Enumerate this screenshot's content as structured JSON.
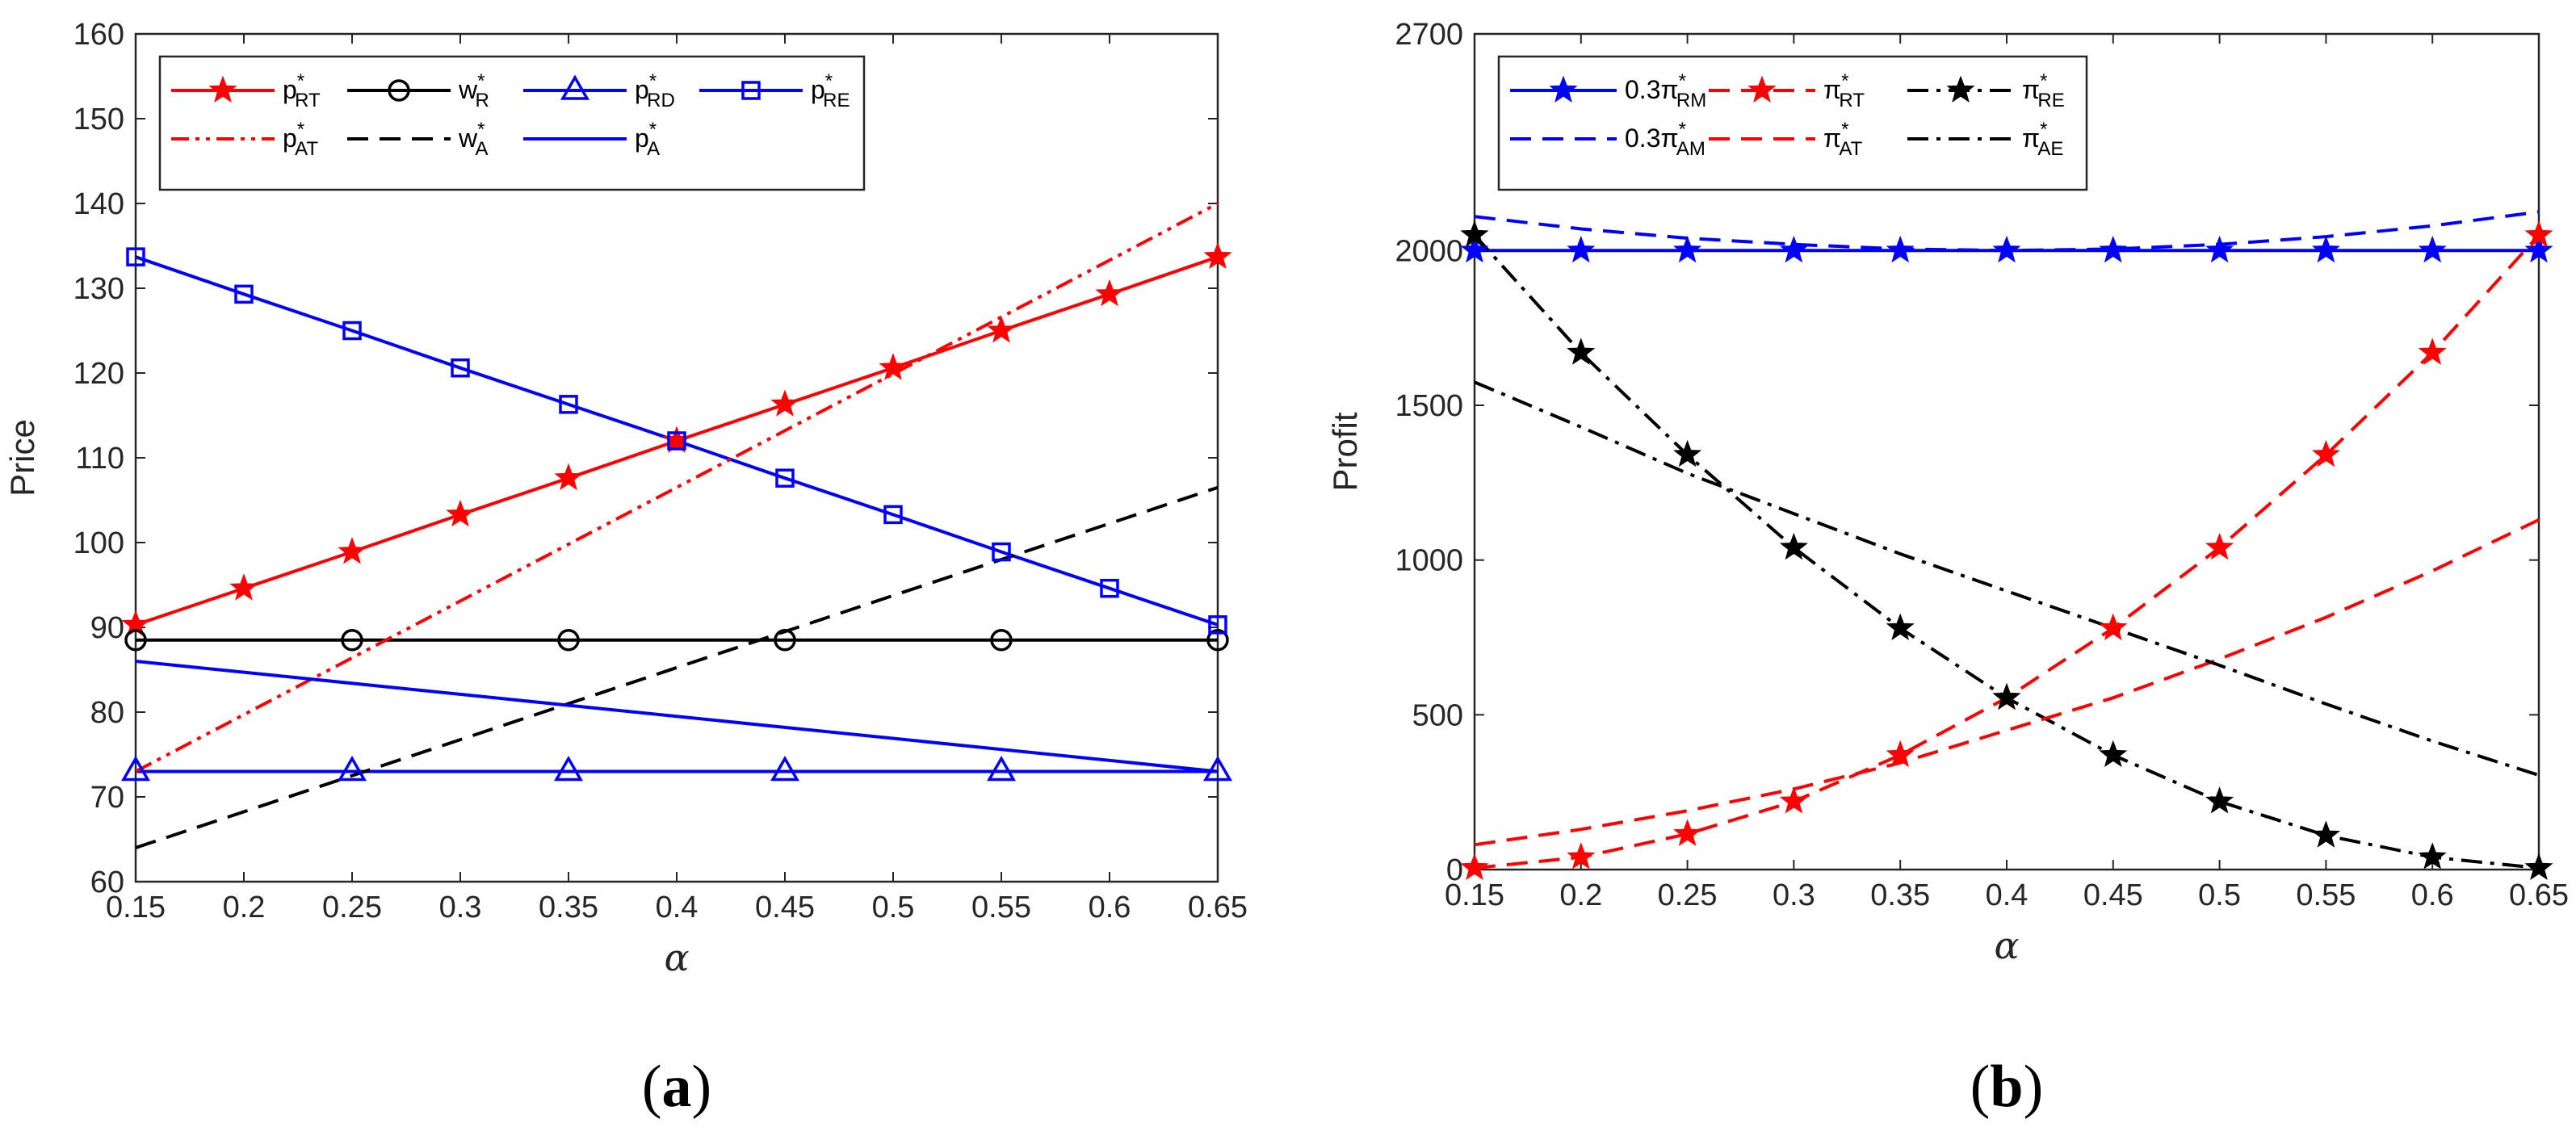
{
  "colors": {
    "red": "#ff0000",
    "blue": "#0000ff",
    "black": "#000000"
  },
  "chart_data": [
    {
      "type": "line",
      "panel_label_text": "(a)",
      "panel_letter": "a",
      "ylabel": "Price",
      "xlabel": "α",
      "xlim": [
        0.15,
        0.65
      ],
      "ylim": [
        60,
        160
      ],
      "xticks": [
        "0.15",
        "0.2",
        "0.25",
        "0.3",
        "0.35",
        "0.4",
        "0.45",
        "0.5",
        "0.55",
        "0.6",
        "0.65"
      ],
      "yticks": [
        "60",
        "70",
        "80",
        "90",
        "100",
        "110",
        "120",
        "130",
        "140",
        "150",
        "160"
      ],
      "legend_position": "top-left",
      "series": [
        {
          "key": "pRT",
          "base": "p",
          "sup": "*",
          "sub": "RT",
          "color": "#ff0000",
          "dash": "solid",
          "marker": "star",
          "x": [
            0.15,
            0.2,
            0.25,
            0.3,
            0.35,
            0.4,
            0.45,
            0.5,
            0.55,
            0.6,
            0.65
          ],
          "values": [
            90.3,
            94.6,
            98.9,
            103.3,
            107.6,
            112.0,
            116.3,
            120.6,
            125.0,
            129.3,
            133.7
          ]
        },
        {
          "key": "wR",
          "base": "w",
          "sup": "*",
          "sub": "R",
          "color": "#000000",
          "dash": "solid",
          "marker": "circle",
          "marker_x": [
            0.15,
            0.25,
            0.35,
            0.45,
            0.55,
            0.65
          ],
          "x": [
            0.15,
            0.65
          ],
          "values": [
            88.5,
            88.5
          ]
        },
        {
          "key": "pRD",
          "base": "p",
          "sup": "*",
          "sub": "RD",
          "color": "#0000ff",
          "dash": "solid",
          "marker": "triangle",
          "marker_x": [
            0.15,
            0.25,
            0.35,
            0.45,
            0.55,
            0.65
          ],
          "x": [
            0.15,
            0.65
          ],
          "values": [
            73.0,
            73.0
          ]
        },
        {
          "key": "pRE",
          "base": "p",
          "sup": "*",
          "sub": "RE",
          "color": "#0000ff",
          "dash": "solid",
          "marker": "square",
          "x": [
            0.15,
            0.2,
            0.25,
            0.3,
            0.35,
            0.4,
            0.45,
            0.5,
            0.55,
            0.6,
            0.65
          ],
          "values": [
            133.7,
            129.3,
            125.0,
            120.6,
            116.3,
            112.0,
            107.6,
            103.3,
            98.9,
            94.6,
            90.3
          ]
        },
        {
          "key": "pAT",
          "base": "p",
          "sup": "*",
          "sub": "AT",
          "color": "#ff0000",
          "dash": "dashdotdot",
          "marker": "none",
          "x": [
            0.15,
            0.65
          ],
          "values": [
            73.0,
            140.0
          ]
        },
        {
          "key": "wA",
          "base": "w",
          "sup": "*",
          "sub": "A",
          "color": "#000000",
          "dash": "dashed",
          "marker": "none",
          "x": [
            0.15,
            0.65
          ],
          "values": [
            64.0,
            106.5
          ]
        },
        {
          "key": "pA",
          "base": "p",
          "sup": "*",
          "sub": "A",
          "color": "#0000ff",
          "dash": "solid",
          "marker": "none",
          "x": [
            0.15,
            0.65
          ],
          "values": [
            86.0,
            73.0
          ]
        }
      ]
    },
    {
      "type": "line",
      "panel_label_text": "(b)",
      "panel_letter": "b",
      "ylabel": "Profit",
      "xlabel": "α",
      "xlim": [
        0.15,
        0.65
      ],
      "ylim": [
        0,
        2700
      ],
      "xticks": [
        "0.15",
        "0.2",
        "0.25",
        "0.3",
        "0.35",
        "0.4",
        "0.45",
        "0.5",
        "0.55",
        "0.6",
        "0.65"
      ],
      "yticks": [
        "0",
        "500",
        "1000",
        "1500",
        "2000",
        "2700"
      ],
      "ytick_values": [
        0,
        500,
        1000,
        1500,
        2000,
        2700
      ],
      "legend_position": "top-left",
      "series": [
        {
          "key": "RM",
          "base": "0.3π",
          "sup": "*",
          "sub": "RM",
          "color": "#0000ff",
          "dash": "solid",
          "marker": "star",
          "x": [
            0.15,
            0.2,
            0.25,
            0.3,
            0.35,
            0.4,
            0.45,
            0.5,
            0.55,
            0.6,
            0.65
          ],
          "values": [
            2000,
            2000,
            2000,
            2000,
            2000,
            2000,
            2000,
            2000,
            2000,
            2000,
            2000
          ]
        },
        {
          "key": "RT",
          "base": "π",
          "sup": "*",
          "sub": "RT",
          "color": "#ff0000",
          "dash": "dashed",
          "marker": "star",
          "x": [
            0.15,
            0.2,
            0.25,
            0.3,
            0.35,
            0.4,
            0.45,
            0.5,
            0.55,
            0.6,
            0.65
          ],
          "values": [
            5,
            40,
            115,
            220,
            370,
            555,
            780,
            1040,
            1340,
            1670,
            2050
          ]
        },
        {
          "key": "RE",
          "base": "π",
          "sup": "*",
          "sub": "RE",
          "color": "#000000",
          "dash": "dashdot",
          "marker": "star",
          "x": [
            0.15,
            0.2,
            0.25,
            0.3,
            0.35,
            0.4,
            0.45,
            0.5,
            0.55,
            0.6,
            0.65
          ],
          "values": [
            2050,
            1670,
            1340,
            1040,
            780,
            555,
            370,
            220,
            110,
            40,
            5
          ]
        },
        {
          "key": "AM",
          "base": "0.3π",
          "sup": "*",
          "sub": "AM",
          "color": "#0000ff",
          "dash": "dashed",
          "marker": "none",
          "x": [
            0.15,
            0.2,
            0.25,
            0.3,
            0.35,
            0.4,
            0.45,
            0.5,
            0.55,
            0.6,
            0.65
          ],
          "values": [
            2110,
            2070,
            2040,
            2020,
            2005,
            2000,
            2005,
            2020,
            2045,
            2080,
            2125
          ]
        },
        {
          "key": "AT",
          "base": "π",
          "sup": "*",
          "sub": "AT",
          "color": "#ff0000",
          "dash": "dashed",
          "marker": "none",
          "x": [
            0.15,
            0.2,
            0.25,
            0.3,
            0.35,
            0.4,
            0.45,
            0.5,
            0.55,
            0.6,
            0.65
          ],
          "values": [
            80,
            130,
            190,
            260,
            345,
            450,
            555,
            680,
            815,
            965,
            1130
          ]
        },
        {
          "key": "AE",
          "base": "π",
          "sup": "*",
          "sub": "AE",
          "color": "#000000",
          "dash": "dashdot",
          "marker": "none",
          "x": [
            0.15,
            0.2,
            0.25,
            0.3,
            0.35,
            0.4,
            0.45,
            0.5,
            0.55,
            0.6,
            0.65
          ],
          "values": [
            1575,
            1430,
            1280,
            1150,
            1020,
            900,
            780,
            660,
            535,
            415,
            305
          ]
        }
      ]
    }
  ]
}
